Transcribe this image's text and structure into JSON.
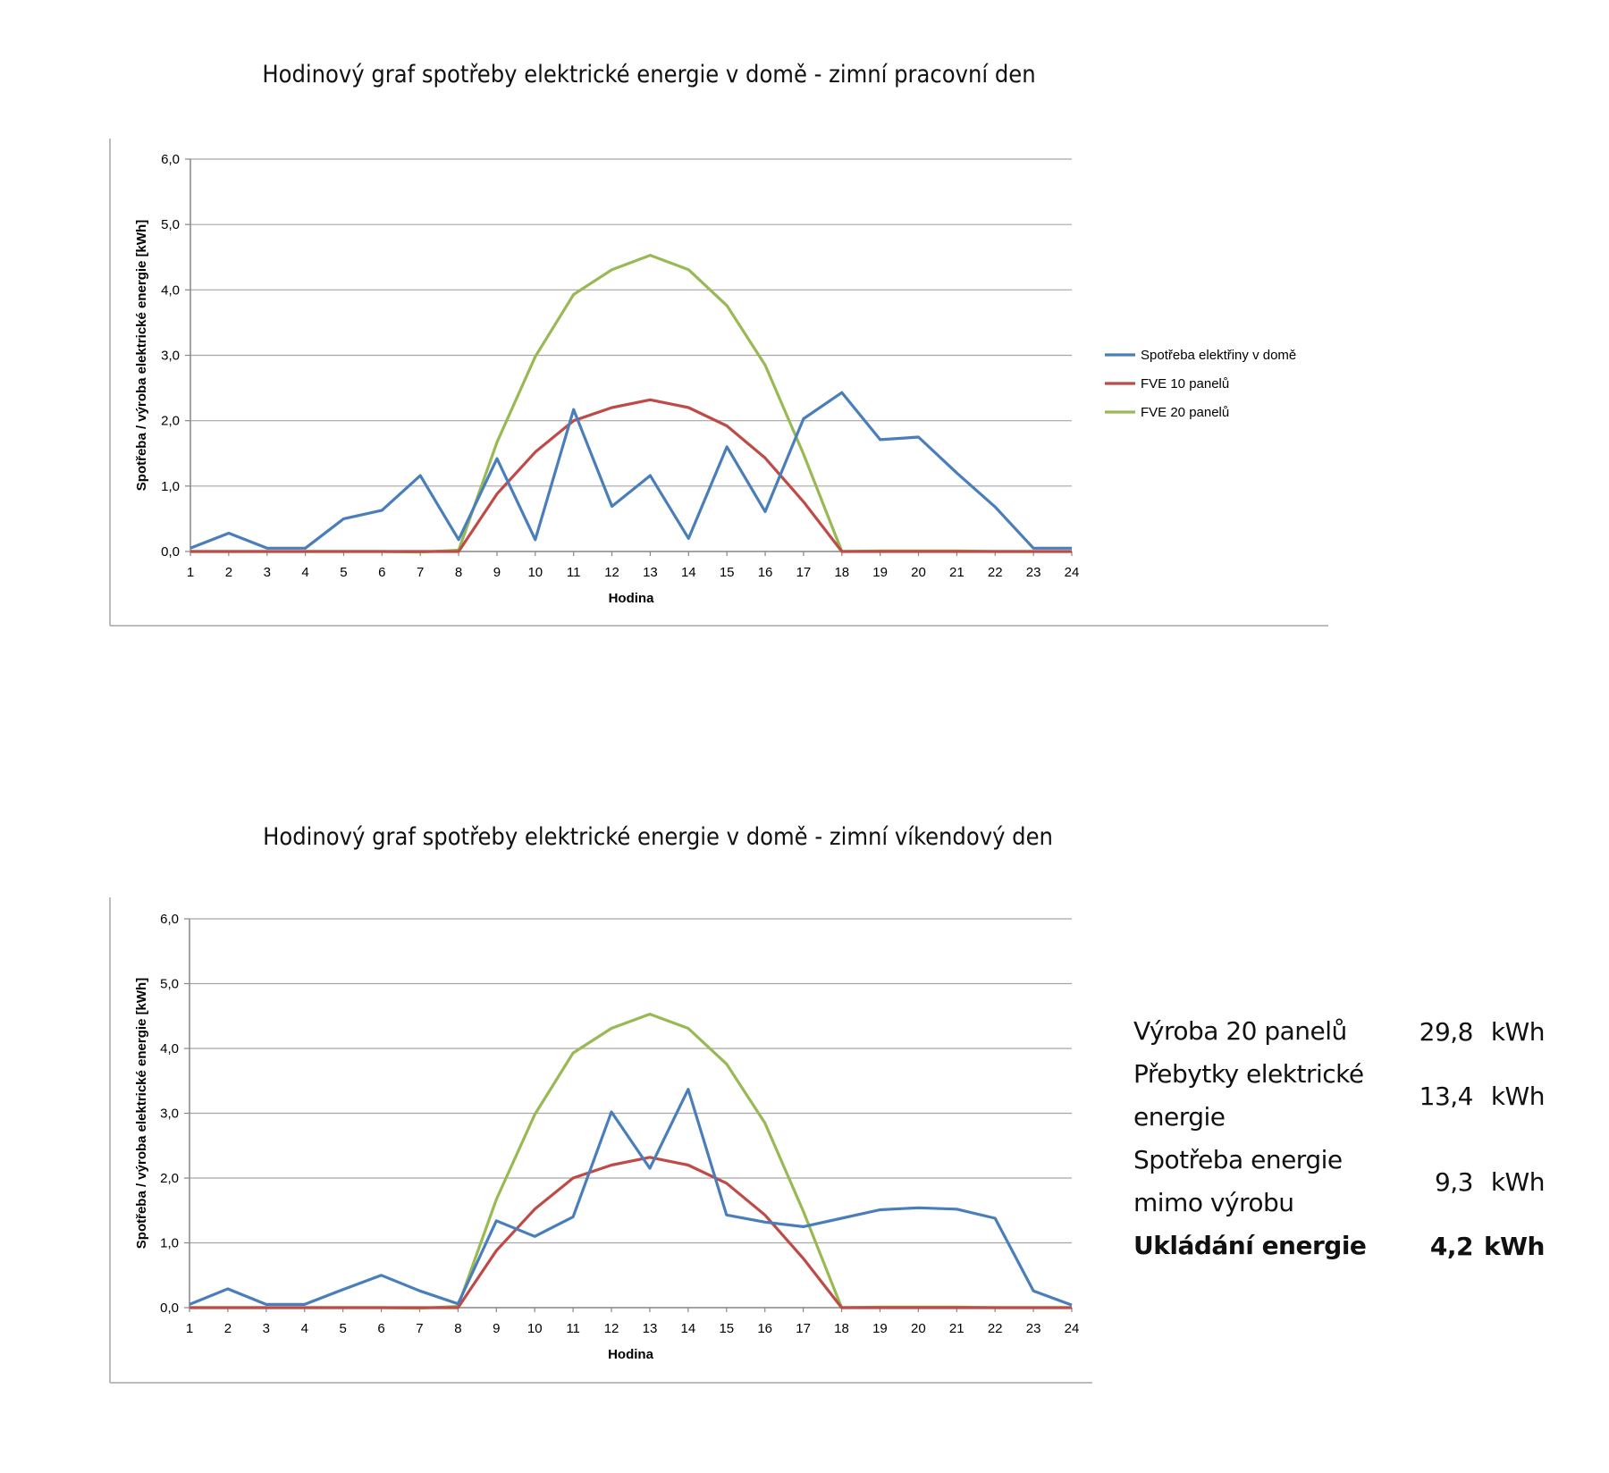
{
  "chart_data": [
    {
      "type": "line",
      "title": "Hodinový graf  spotřeby elektrické energie v domě - zimní pracovní den",
      "xlabel": "Hodina",
      "ylabel": "Spotřeba / výroba elektrické energie [kWh]",
      "ylim": [
        0,
        6
      ],
      "yticks": [
        "0,0",
        "1,0",
        "2,0",
        "3,0",
        "4,0",
        "5,0",
        "6,0"
      ],
      "categories": [
        "1",
        "2",
        "3",
        "4",
        "5",
        "6",
        "7",
        "8",
        "9",
        "10",
        "11",
        "12",
        "13",
        "14",
        "15",
        "16",
        "17",
        "18",
        "19",
        "20",
        "21",
        "22",
        "23",
        "24"
      ],
      "legend": "right",
      "series": [
        {
          "name": "Spotřeba elektřiny v domě",
          "color": "#4a7ebb",
          "values": [
            0.05,
            0.28,
            0.05,
            0.05,
            0.5,
            0.63,
            1.16,
            0.18,
            1.42,
            0.18,
            2.17,
            0.69,
            1.16,
            0.2,
            1.6,
            0.61,
            2.03,
            2.43,
            1.71,
            1.75,
            1.2,
            0.68,
            0.05,
            0.05
          ]
        },
        {
          "name": "FVE 10 panelů",
          "color": "#be4b48",
          "values": [
            0,
            0,
            0,
            0,
            0,
            0,
            0,
            0,
            0.88,
            1.52,
            2.0,
            2.2,
            2.32,
            2.2,
            1.92,
            1.43,
            0.76,
            0,
            0,
            0,
            0,
            0,
            0,
            0
          ]
        },
        {
          "name": "FVE 20 panelů",
          "color": "#98b954",
          "values": [
            0,
            0,
            0,
            0,
            0,
            0,
            -0.01,
            0.02,
            1.67,
            2.98,
            3.93,
            4.31,
            4.53,
            4.31,
            3.76,
            2.85,
            1.49,
            0,
            0.01,
            0.01,
            0.01,
            0,
            0,
            0
          ]
        }
      ]
    },
    {
      "type": "line",
      "title": "Hodinový graf  spotřeby elektrické energie v domě - zimní víkendový den",
      "xlabel": "Hodina",
      "ylabel": "Spotřeba / výroba elektrické energie [kWh]",
      "ylim": [
        0,
        6
      ],
      "yticks": [
        "0,0",
        "1,0",
        "2,0",
        "3,0",
        "4,0",
        "5,0",
        "6,0"
      ],
      "categories": [
        "1",
        "2",
        "3",
        "4",
        "5",
        "6",
        "7",
        "8",
        "9",
        "10",
        "11",
        "12",
        "13",
        "14",
        "15",
        "16",
        "17",
        "18",
        "19",
        "20",
        "21",
        "22",
        "23",
        "24"
      ],
      "legend": "none",
      "series": [
        {
          "name": "Spotřeba elektřiny v domě",
          "color": "#4a7ebb",
          "values": [
            0.05,
            0.29,
            0.05,
            0.05,
            0.28,
            0.5,
            0.26,
            0.06,
            1.34,
            1.1,
            1.4,
            3.02,
            2.15,
            3.37,
            1.43,
            1.32,
            1.25,
            1.38,
            1.51,
            1.54,
            1.52,
            1.38,
            0.26,
            0.04
          ]
        },
        {
          "name": "FVE 10 panelů",
          "color": "#be4b48",
          "values": [
            0,
            0,
            0,
            0,
            0,
            0,
            0,
            0,
            0.88,
            1.52,
            2.0,
            2.2,
            2.32,
            2.2,
            1.92,
            1.43,
            0.76,
            0,
            0,
            0,
            0,
            0,
            0,
            0
          ]
        },
        {
          "name": "FVE 20 panelů",
          "color": "#98b954",
          "values": [
            0,
            0,
            0,
            0,
            0,
            0,
            -0.01,
            0.02,
            1.67,
            2.98,
            3.93,
            4.31,
            4.53,
            4.31,
            3.76,
            2.85,
            1.49,
            0,
            0.01,
            0.01,
            0.01,
            0,
            0,
            0
          ]
        }
      ]
    }
  ],
  "summary": [
    {
      "label_lines": [
        "Výroba 20 panelů"
      ],
      "value": "29,8",
      "unit": "kWh",
      "bold": false
    },
    {
      "label_lines": [
        "Přebytky elektrické",
        "energie"
      ],
      "value": "13,4",
      "unit": "kWh",
      "bold": false
    },
    {
      "label_lines": [
        "Spotřeba energie",
        "mimo výrobu"
      ],
      "value": "9,3",
      "unit": "kWh",
      "bold": false
    },
    {
      "label_lines": [
        "Ukládání energie"
      ],
      "value": "4,2",
      "unit": "kWh",
      "bold": true
    }
  ]
}
